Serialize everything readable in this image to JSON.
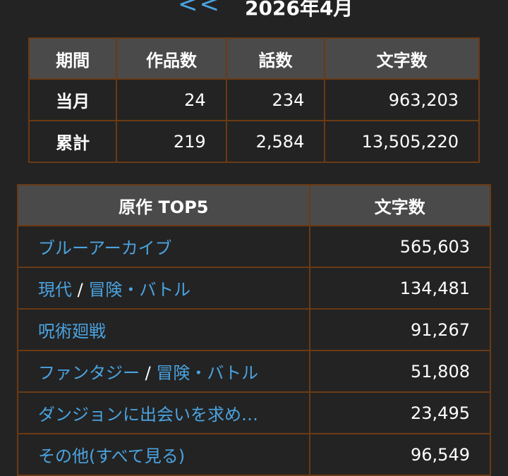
{
  "header": {
    "prev_label": "<<",
    "month_title": "2026年4月"
  },
  "summary": {
    "columns": [
      "期間",
      "作品数",
      "話数",
      "文字数"
    ],
    "rows": [
      {
        "period": "当月",
        "works": "24",
        "episodes": "234",
        "chars": "963,203"
      },
      {
        "period": "累計",
        "works": "219",
        "episodes": "2,584",
        "chars": "13,505,220"
      }
    ]
  },
  "top5": {
    "columns": [
      "原作 TOP5",
      "文字数"
    ],
    "rows": [
      {
        "parts": [
          "ブルーアーカイブ"
        ],
        "chars": "565,603"
      },
      {
        "parts": [
          "現代",
          "冒険・バトル"
        ],
        "chars": "134,481"
      },
      {
        "parts": [
          "呪術廻戦"
        ],
        "chars": "91,267"
      },
      {
        "parts": [
          "ファンタジー",
          "冒険・バトル"
        ],
        "chars": "51,808"
      },
      {
        "parts": [
          "ダンジョンに出会いを求め…"
        ],
        "chars": "23,495"
      },
      {
        "parts": [
          "その他(すべて見る)"
        ],
        "chars": "96,549"
      }
    ],
    "separator": " / "
  },
  "colors": {
    "background": "#232323",
    "header_cell": "#4a4a4a",
    "border": "#6b3a14",
    "link": "#4aa3e0"
  }
}
